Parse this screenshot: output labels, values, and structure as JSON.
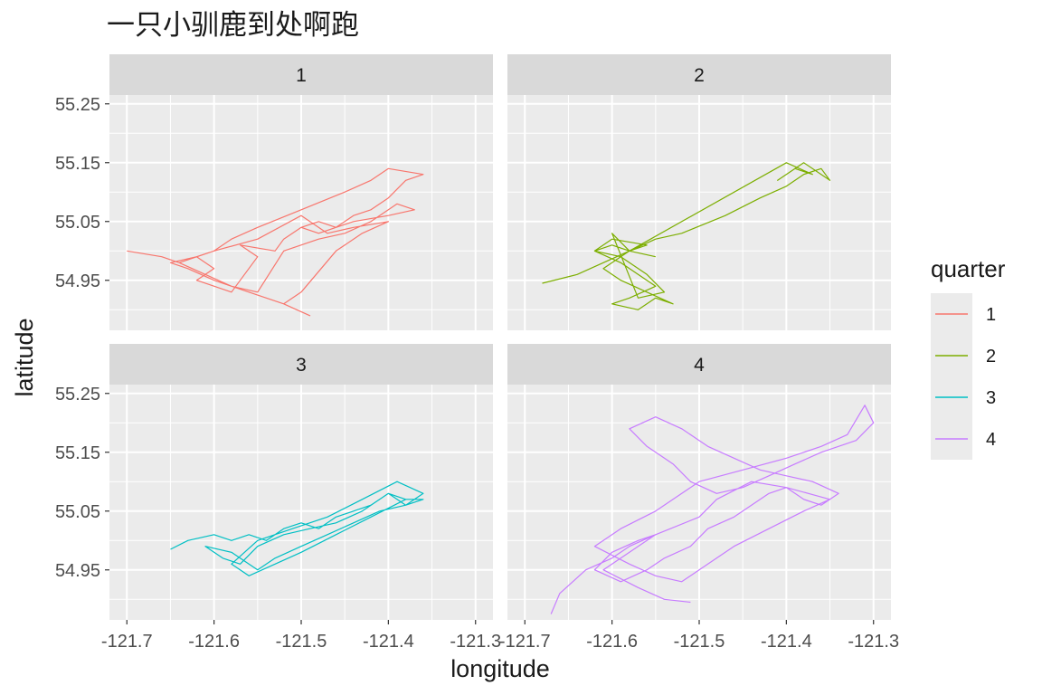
{
  "chart_data": {
    "type": "line",
    "title": "一只小驯鹿到处啊跑",
    "xlabel": "longitude",
    "ylabel": "latitude",
    "facet_var": "quarter",
    "xlim": [
      -121.72,
      -121.28
    ],
    "ylim": [
      54.865,
      55.265
    ],
    "x_ticks": [
      -121.7,
      -121.6,
      -121.5,
      -121.4,
      -121.3
    ],
    "x_tick_labels": [
      "-121.7",
      "-121.6",
      "-121.5",
      "-121.4",
      "-121.3"
    ],
    "y_ticks": [
      54.95,
      55.05,
      55.15,
      55.25
    ],
    "y_tick_labels": [
      "54.95",
      "55.05",
      "55.15",
      "55.25"
    ],
    "grid": true,
    "legend": {
      "title": "quarter",
      "position": "right"
    },
    "series": [
      {
        "name": "1",
        "color": "#F8766D",
        "x": [
          -121.7,
          -121.66,
          -121.64,
          -121.62,
          -121.6,
          -121.62,
          -121.58,
          -121.55,
          -121.57,
          -121.53,
          -121.52,
          -121.5,
          -121.48,
          -121.46,
          -121.44,
          -121.42,
          -121.4,
          -121.38,
          -121.36,
          -121.4,
          -121.42,
          -121.45,
          -121.5,
          -121.55,
          -121.58,
          -121.6,
          -121.62,
          -121.65,
          -121.63,
          -121.6,
          -121.56,
          -121.52,
          -121.49,
          -121.52,
          -121.5,
          -121.46,
          -121.43,
          -121.4,
          -121.44,
          -121.47,
          -121.5,
          -121.55,
          -121.6,
          -121.64,
          -121.61,
          -121.58,
          -121.55,
          -121.52,
          -121.48,
          -121.45,
          -121.42,
          -121.39,
          -121.37,
          -121.4,
          -121.44,
          -121.48,
          -121.5
        ],
        "y": [
          55.0,
          54.99,
          54.98,
          54.99,
          54.97,
          54.95,
          54.93,
          54.99,
          55.01,
          55.0,
          55.02,
          55.04,
          55.05,
          55.04,
          55.06,
          55.07,
          55.09,
          55.12,
          55.13,
          55.14,
          55.12,
          55.1,
          55.07,
          55.04,
          55.02,
          55.0,
          54.99,
          54.98,
          54.97,
          54.95,
          54.93,
          54.91,
          54.89,
          54.91,
          54.93,
          55.0,
          55.03,
          55.05,
          55.04,
          55.03,
          55.06,
          55.02,
          55.0,
          54.98,
          54.96,
          54.94,
          54.93,
          55.0,
          55.02,
          55.03,
          55.05,
          55.08,
          55.07,
          55.06,
          55.05,
          55.03,
          55.04
        ]
      },
      {
        "name": "2",
        "color": "#7CAE00",
        "x": [
          -121.68,
          -121.64,
          -121.61,
          -121.58,
          -121.56,
          -121.6,
          -121.62,
          -121.59,
          -121.57,
          -121.55,
          -121.58,
          -121.6,
          -121.57,
          -121.55,
          -121.53,
          -121.56,
          -121.59,
          -121.61,
          -121.58,
          -121.55,
          -121.52,
          -121.47,
          -121.43,
          -121.4,
          -121.38,
          -121.36,
          -121.35,
          -121.38,
          -121.41,
          -121.39,
          -121.37,
          -121.4,
          -121.58,
          -121.6,
          -121.62,
          -121.59,
          -121.56,
          -121.54,
          -121.57,
          -121.6,
          -121.58,
          -121.55
        ],
        "y": [
          54.945,
          54.96,
          54.98,
          55.0,
          55.01,
          55.02,
          55.0,
          54.98,
          54.96,
          54.94,
          54.92,
          54.91,
          54.9,
          54.92,
          54.91,
          54.93,
          54.95,
          54.97,
          55.0,
          55.02,
          55.03,
          55.06,
          55.09,
          55.11,
          55.13,
          55.14,
          55.12,
          55.15,
          55.12,
          55.14,
          55.13,
          55.15,
          55.0,
          55.01,
          55.0,
          54.99,
          54.96,
          54.93,
          54.92,
          55.03,
          55.0,
          54.99
        ]
      },
      {
        "name": "3",
        "color": "#00BFC4",
        "x": [
          -121.65,
          -121.63,
          -121.6,
          -121.58,
          -121.56,
          -121.54,
          -121.52,
          -121.5,
          -121.48,
          -121.46,
          -121.44,
          -121.42,
          -121.4,
          -121.38,
          -121.36,
          -121.38,
          -121.4,
          -121.43,
          -121.46,
          -121.49,
          -121.52,
          -121.55,
          -121.57,
          -121.59,
          -121.61,
          -121.58,
          -121.55,
          -121.53,
          -121.5,
          -121.47,
          -121.44,
          -121.41,
          -121.38,
          -121.36,
          -121.39,
          -121.43,
          -121.47,
          -121.51,
          -121.55,
          -121.58,
          -121.56,
          -121.53,
          -121.5,
          -121.46,
          -121.42,
          -121.38
        ],
        "y": [
          54.985,
          55.0,
          55.01,
          55.0,
          55.01,
          55.0,
          55.02,
          55.03,
          55.02,
          55.04,
          55.05,
          55.06,
          55.08,
          55.07,
          55.07,
          55.06,
          55.08,
          55.05,
          55.03,
          55.02,
          55.01,
          54.99,
          54.96,
          54.97,
          54.99,
          54.98,
          54.95,
          54.97,
          54.99,
          55.01,
          55.03,
          55.05,
          55.06,
          55.08,
          55.1,
          55.07,
          55.04,
          55.02,
          55.0,
          54.96,
          54.94,
          54.96,
          54.98,
          55.01,
          55.04,
          55.07
        ]
      },
      {
        "name": "4",
        "color": "#C77CFF",
        "x": [
          -121.67,
          -121.66,
          -121.63,
          -121.6,
          -121.58,
          -121.55,
          -121.57,
          -121.6,
          -121.62,
          -121.59,
          -121.56,
          -121.54,
          -121.51,
          -121.49,
          -121.46,
          -121.44,
          -121.42,
          -121.4,
          -121.38,
          -121.36,
          -121.34,
          -121.37,
          -121.4,
          -121.43,
          -121.46,
          -121.49,
          -121.52,
          -121.55,
          -121.58,
          -121.56,
          -121.53,
          -121.51,
          -121.48,
          -121.45,
          -121.42,
          -121.39,
          -121.36,
          -121.32,
          -121.3,
          -121.31,
          -121.33,
          -121.36,
          -121.4,
          -121.45,
          -121.5,
          -121.52,
          -121.55,
          -121.59,
          -121.62,
          -121.58,
          -121.55,
          -121.52,
          -121.49,
          -121.46,
          -121.42,
          -121.38,
          -121.35,
          -121.4,
          -121.44,
          -121.48,
          -121.5,
          -121.55,
          -121.58,
          -121.61,
          -121.57,
          -121.54,
          -121.51
        ],
        "y": [
          54.875,
          54.91,
          54.95,
          54.97,
          54.99,
          55.01,
          55.0,
          54.98,
          54.95,
          54.93,
          54.95,
          54.97,
          54.99,
          55.02,
          55.04,
          55.06,
          55.08,
          55.09,
          55.07,
          55.06,
          55.08,
          55.1,
          55.11,
          55.12,
          55.14,
          55.16,
          55.19,
          55.21,
          55.19,
          55.16,
          55.13,
          55.1,
          55.08,
          55.09,
          55.11,
          55.13,
          55.15,
          55.17,
          55.2,
          55.23,
          55.18,
          55.16,
          55.14,
          55.12,
          55.1,
          55.08,
          55.05,
          55.02,
          54.99,
          54.96,
          54.94,
          54.93,
          54.96,
          54.99,
          55.02,
          55.05,
          55.07,
          55.09,
          55.1,
          55.07,
          55.04,
          55.01,
          54.98,
          54.95,
          54.92,
          54.9,
          54.895
        ]
      }
    ]
  }
}
